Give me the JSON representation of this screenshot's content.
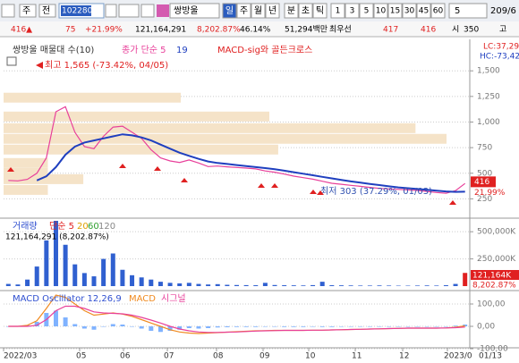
{
  "toolbar": {
    "market": "주",
    "type": "전",
    "code": "102280",
    "name": "쌍방울",
    "periods": [
      "일",
      "주",
      "월",
      "년",
      "분",
      "초",
      "틱"
    ],
    "intervals": [
      "1",
      "3",
      "5",
      "10",
      "15",
      "30",
      "45",
      "60"
    ],
    "count": "5",
    "range": "209/6"
  },
  "info": [
    {
      "text": "416▲",
      "color": "#e02020"
    },
    {
      "text": "75",
      "color": "#e02020"
    },
    {
      "text": "+21.99%",
      "color": "#e02020"
    },
    {
      "text": "121,164,291",
      "color": "#000000"
    },
    {
      "text": "8,202.87%",
      "color": "#e02020"
    },
    {
      "text": "46.14%",
      "color": "#000000"
    },
    {
      "text": "51,294백만",
      "color": "#000000"
    },
    {
      "text": "최우선",
      "color": "#000000"
    },
    {
      "text": "417",
      "color": "#e02020"
    },
    {
      "text": "416",
      "color": "#e02020"
    },
    {
      "text": "시",
      "color": "#000000"
    },
    {
      "text": "350",
      "color": "#000000"
    },
    {
      "text": "고",
      "color": "#000000"
    }
  ],
  "chart_data": [
    {
      "type": "line",
      "title": "쌍방울 매물대 수(10)",
      "indicator": "MACD-sig와 골든크로스",
      "lc": "LC:37,29",
      "hc": "HC:-73,42",
      "series": [
        {
          "name": "종가 단순 5",
          "color": "#e8409a",
          "values": [
            430,
            425,
            440,
            500,
            650,
            1100,
            1150,
            900,
            760,
            740,
            860,
            950,
            960,
            900,
            840,
            730,
            650,
            620,
            605,
            630,
            600,
            565,
            570,
            562,
            556,
            550,
            542,
            522,
            510,
            492,
            472,
            457,
            442,
            422,
            402,
            392,
            382,
            372,
            362,
            352,
            347,
            342,
            337,
            332,
            322,
            312,
            305,
            330,
            400
          ]
        },
        {
          "name": "19",
          "color": "#1f3fbf",
          "values": [
            null,
            null,
            null,
            430,
            470,
            560,
            680,
            760,
            800,
            820,
            840,
            860,
            880,
            870,
            850,
            820,
            780,
            740,
            700,
            670,
            640,
            615,
            600,
            590,
            580,
            570,
            560,
            550,
            540,
            525,
            510,
            495,
            480,
            465,
            450,
            435,
            420,
            408,
            396,
            384,
            372,
            362,
            354,
            346,
            338,
            330,
            322,
            318,
            320
          ]
        }
      ],
      "ylim": [
        70,
        1790
      ],
      "yticks": [
        {
          "value": 1500,
          "label": "1,500"
        },
        {
          "value": 1250,
          "label": "1,250"
        },
        {
          "value": 1000,
          "label": "1,000"
        },
        750,
        500,
        250
      ],
      "grid": true,
      "annotations": [
        "최고 1,565 (-73.42%, 04/05)",
        "최저 303 (37.29%, 01/03)"
      ],
      "current_price": 416,
      "current_change": "21.99%",
      "volume_profile": {
        "levels": [
          1238,
          1054,
          940,
          836,
          731,
          600,
          503,
          442,
          337
        ],
        "values": [
          40,
          60,
          93,
          100,
          62,
          10,
          10,
          18,
          10
        ],
        "color": "#f5e3c8"
      }
    },
    {
      "type": "bar",
      "title": "거래량",
      "subtitle": "121,164,291 (8,202.87%)",
      "ma_legend": [
        {
          "name": "단순 5",
          "color": "#e02020"
        },
        {
          "name": "20",
          "color": "#e0a000"
        },
        {
          "name": "60",
          "color": "#30a030"
        },
        {
          "name": "120",
          "color": "#888888"
        }
      ],
      "values": [
        20000,
        15000,
        60000,
        180000,
        420000,
        600000,
        380000,
        200000,
        120000,
        90000,
        250000,
        300000,
        150000,
        100000,
        80000,
        60000,
        40000,
        30000,
        25000,
        30000,
        20000,
        15000,
        18000,
        12000,
        10000,
        9000,
        8000,
        30000,
        10000,
        8000,
        7000,
        6000,
        9000,
        40000,
        8000,
        7000,
        6000,
        5000,
        5000,
        6000,
        5000,
        4000,
        4000,
        5000,
        6000,
        5000,
        8000,
        20000,
        121164.291
      ],
      "color": "#3060d0",
      "last_color": "#e02020",
      "ylim": [
        0,
        600000
      ],
      "yticks": [
        {
          "value": 500000,
          "label": "500,000K"
        },
        {
          "value": 250000,
          "label": "250,000K"
        }
      ],
      "grid": true,
      "last_label": "121,164K",
      "change_label": "8,202.87%"
    },
    {
      "type": "line",
      "title": "MACD Oscillator 12,26,9",
      "series": [
        {
          "name": "MACD Oscillator 12,26,9",
          "style": "bar",
          "color": "#7fb2ff",
          "values": [
            0,
            0,
            5,
            20,
            60,
            70,
            40,
            10,
            -10,
            -15,
            0,
            10,
            8,
            0,
            -10,
            -20,
            -25,
            -20,
            -15,
            -8,
            -10,
            -8,
            -5,
            -4,
            -3,
            -3,
            -3,
            -2,
            -2,
            -3,
            -3,
            -3,
            -2,
            -3,
            -3,
            -2,
            -2,
            -2,
            -1,
            -1,
            -1,
            0,
            0,
            0,
            -1,
            -1,
            0,
            3,
            8
          ]
        },
        {
          "name": "MACD",
          "color": "#f08a20",
          "values": [
            0,
            0,
            5,
            25,
            80,
            140,
            130,
            100,
            70,
            50,
            55,
            60,
            55,
            45,
            30,
            15,
            0,
            -15,
            -25,
            -30,
            -32,
            -30,
            -28,
            -26,
            -24,
            -22,
            -20,
            -19,
            -18,
            -18,
            -18,
            -18,
            -17,
            -17,
            -16,
            -15,
            -14,
            -13,
            -12,
            -11,
            -10,
            -9,
            -8,
            -8,
            -8,
            -8,
            -7,
            -4,
            2
          ]
        },
        {
          "name": "시그널",
          "color": "#e8409a",
          "values": [
            0,
            0,
            0,
            5,
            30,
            70,
            90,
            90,
            80,
            65,
            60,
            58,
            56,
            50,
            40,
            28,
            15,
            0,
            -12,
            -20,
            -25,
            -27,
            -27,
            -26,
            -25,
            -23,
            -21,
            -20,
            -19,
            -18,
            -18,
            -18,
            -17,
            -17,
            -16,
            -15,
            -14,
            -13,
            -12,
            -11,
            -10,
            -9,
            -8,
            -8,
            -8,
            -8,
            -7,
            -6,
            -3
          ]
        }
      ],
      "ylim": [
        -92,
        152
      ],
      "yticks": [
        {
          "value": 100,
          "label": "100,00"
        },
        {
          "value": 0,
          "label": "0,00"
        },
        {
          "value": -100,
          "label": "-100,00"
        }
      ],
      "grid": true,
      "x_labels": [
        "2022/03",
        "05",
        "06",
        "07",
        "08",
        "09",
        "10",
        "11",
        "12",
        "2023/0",
        "01/13"
      ]
    }
  ]
}
